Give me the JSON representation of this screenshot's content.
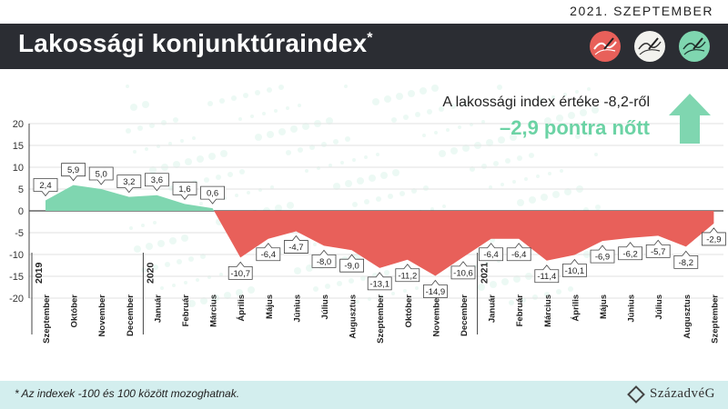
{
  "header": {
    "date": "2021. SZEPTEMBER",
    "title": "Lakossági konjunktúraindex",
    "title_mark": "*"
  },
  "headline": {
    "line1": "A lakossági index értéke -8,2-ről",
    "line2": "–2,9 pontra nőtt"
  },
  "footer": {
    "note": "* Az indexek -100 és 100 között mozoghatnak.",
    "brand": "SzázadvéG"
  },
  "colors": {
    "positive": "#7fd6b0",
    "negative": "#e8605a",
    "banner": "#2b2d33",
    "accent": "#6cd3a5",
    "arrow": "#7fd6b0",
    "footer": "#d3eeee"
  },
  "icons": [
    "red-gauge-icon",
    "white-gauge-icon",
    "green-gauge-icon",
    "arrow-up-icon"
  ],
  "chart_data": {
    "type": "area",
    "categories": [
      "Szeptember",
      "Október",
      "November",
      "December",
      "Január",
      "Február",
      "Március",
      "Április",
      "Május",
      "Június",
      "Július",
      "Augusztus",
      "Szeptember",
      "Október",
      "November",
      "December",
      "Január",
      "Február",
      "Március",
      "Április",
      "Május",
      "Június",
      "Július",
      "Augusztus",
      "Szeptember"
    ],
    "values": [
      2.4,
      5.9,
      5.0,
      3.2,
      3.6,
      1.6,
      0.6,
      -10.7,
      -6.4,
      -4.7,
      -8.0,
      -9.0,
      -13.1,
      -11.2,
      -14.9,
      -10.6,
      -6.4,
      -6.4,
      -11.4,
      -10.1,
      -6.9,
      -6.2,
      -5.7,
      -8.2,
      -2.9
    ],
    "labels": [
      "2,4",
      "5,9",
      "5,0",
      "3,2",
      "3,6",
      "1,6",
      "0,6",
      "-10,7",
      "-6,4",
      "-4,7",
      "-8,0",
      "-9,0",
      "-13,1",
      "-11,2",
      "-14,9",
      "-10,6",
      "-6,4",
      "-6,4",
      "-11,4",
      "-10,1",
      "-6,9",
      "-6,2",
      "-5,7",
      "-8,2",
      "-2,9"
    ],
    "years": [
      {
        "label": "2019",
        "index": 0
      },
      {
        "label": "2020",
        "index": 4
      },
      {
        "label": "2021",
        "index": 16
      }
    ],
    "ylim": [
      -20,
      20
    ],
    "yticks": [
      20,
      15,
      10,
      5,
      0,
      -5,
      -10,
      -15,
      -20
    ],
    "grid": true,
    "title": "",
    "xlabel": "",
    "ylabel": ""
  }
}
